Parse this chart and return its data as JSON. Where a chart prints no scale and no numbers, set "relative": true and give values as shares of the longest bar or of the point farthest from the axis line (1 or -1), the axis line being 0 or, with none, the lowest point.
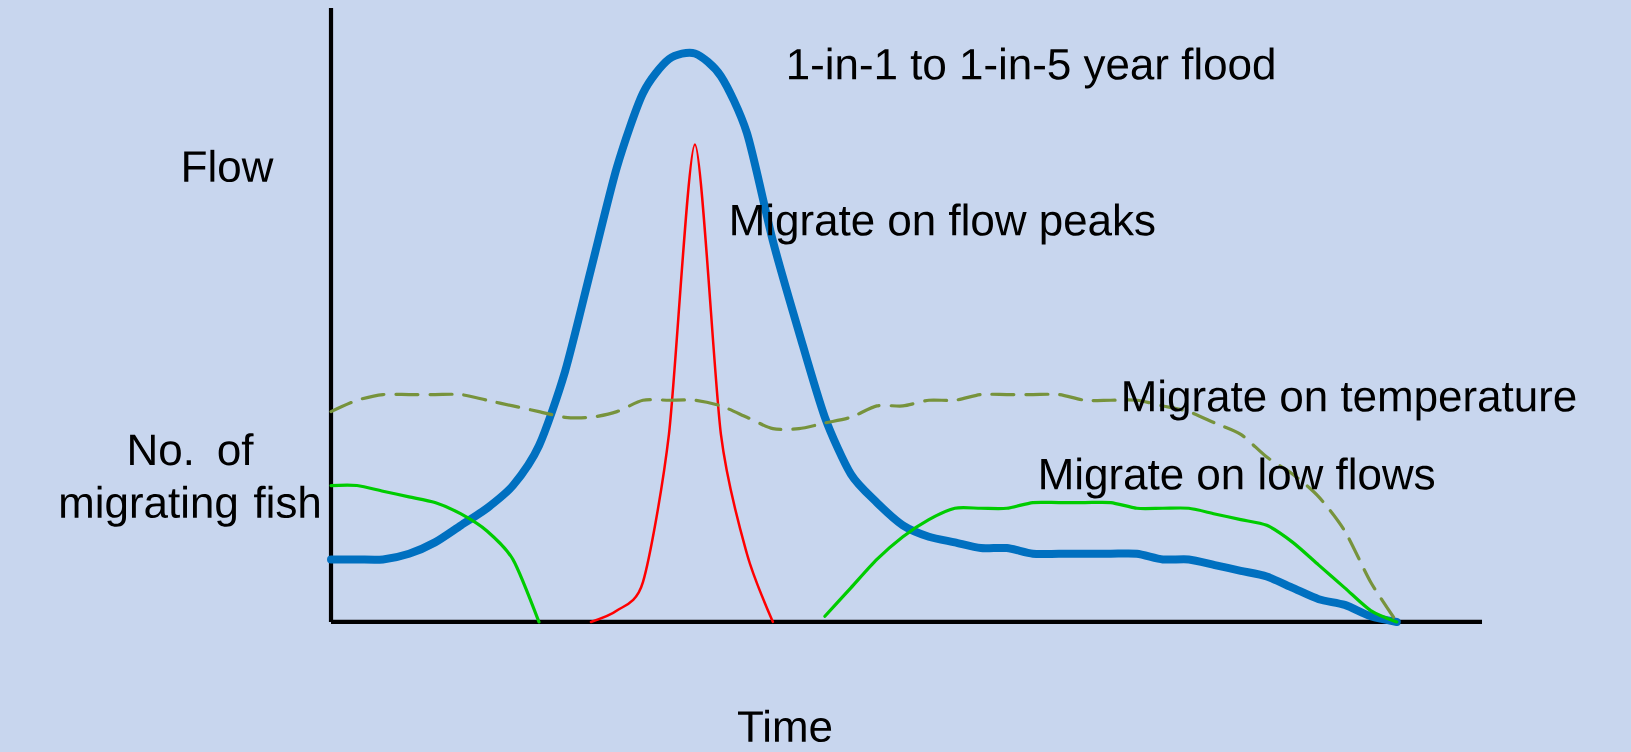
{
  "chart_data": {
    "type": "line",
    "relative": true,
    "xlabel": "Time",
    "ylabel": "Flow",
    "annotations": [
      "No. of migrating fish"
    ],
    "categories": [
      null,
      null,
      null,
      null,
      null,
      null,
      null,
      null,
      null,
      null,
      null,
      null,
      null,
      null,
      null,
      null,
      null,
      null,
      null,
      null,
      null,
      null,
      null,
      null,
      null,
      null,
      null,
      null,
      null,
      null,
      null,
      null,
      null,
      null,
      null,
      null,
      null,
      null,
      null,
      null,
      null,
      null,
      null,
      null,
      null
    ],
    "series": [
      {
        "name": "1-in-1 to 1-in-5 year flood",
        "color": "#0070c0",
        "values": [
          0.11,
          0.11,
          0.11,
          0.12,
          0.14,
          0.17,
          0.2,
          0.24,
          0.31,
          0.44,
          0.62,
          0.8,
          0.93,
          0.99,
          1.0,
          0.96,
          0.86,
          0.67,
          0.51,
          0.36,
          0.26,
          0.21,
          0.17,
          0.15,
          0.14,
          0.13,
          0.13,
          0.12,
          0.12,
          0.12,
          0.12,
          0.12,
          0.11,
          0.11,
          0.1,
          0.09,
          0.08,
          0.06,
          0.04,
          0.03,
          0.01,
          0,
          null,
          null,
          null
        ]
      },
      {
        "name": "Migrate on flow peaks",
        "color": "#ff0000",
        "values": [
          null,
          null,
          null,
          null,
          null,
          null,
          null,
          null,
          null,
          null,
          0,
          0.02,
          0.07,
          0.33,
          0.84,
          0.33,
          0.12,
          0,
          null,
          null,
          null,
          null,
          null,
          null,
          null,
          null,
          null,
          null,
          null,
          null,
          null,
          null,
          null,
          null,
          null,
          null,
          null,
          null,
          null,
          null,
          null,
          null,
          null,
          null,
          null
        ]
      },
      {
        "name": "Migrate on temperature",
        "color": "#77933c",
        "line_style": "dashed",
        "values": [
          0.37,
          0.39,
          0.4,
          0.4,
          0.4,
          0.4,
          0.39,
          0.38,
          0.37,
          0.36,
          0.36,
          0.37,
          0.39,
          0.39,
          0.39,
          0.38,
          0.36,
          0.34,
          0.34,
          0.35,
          0.36,
          0.38,
          0.38,
          0.39,
          0.39,
          0.4,
          0.4,
          0.4,
          0.4,
          0.39,
          0.39,
          0.39,
          0.38,
          0.37,
          0.35,
          0.33,
          0.29,
          0.26,
          0.22,
          0.16,
          0.07,
          0,
          null,
          null,
          null
        ]
      },
      {
        "name": "Migrate on low flows",
        "color": "#00cc00",
        "values": [
          0.24,
          0.24,
          0.23,
          0.22,
          0.21,
          0.19,
          0.16,
          0.11,
          0,
          null,
          null,
          null,
          null,
          null,
          null,
          null,
          null,
          null,
          null,
          0.01,
          0.06,
          0.11,
          0.15,
          0.18,
          0.2,
          0.2,
          0.2,
          0.21,
          0.21,
          0.21,
          0.21,
          0.2,
          0.2,
          0.2,
          0.19,
          0.18,
          0.17,
          0.14,
          0.1,
          0.06,
          0.02,
          0,
          null,
          null,
          null
        ]
      }
    ]
  }
}
